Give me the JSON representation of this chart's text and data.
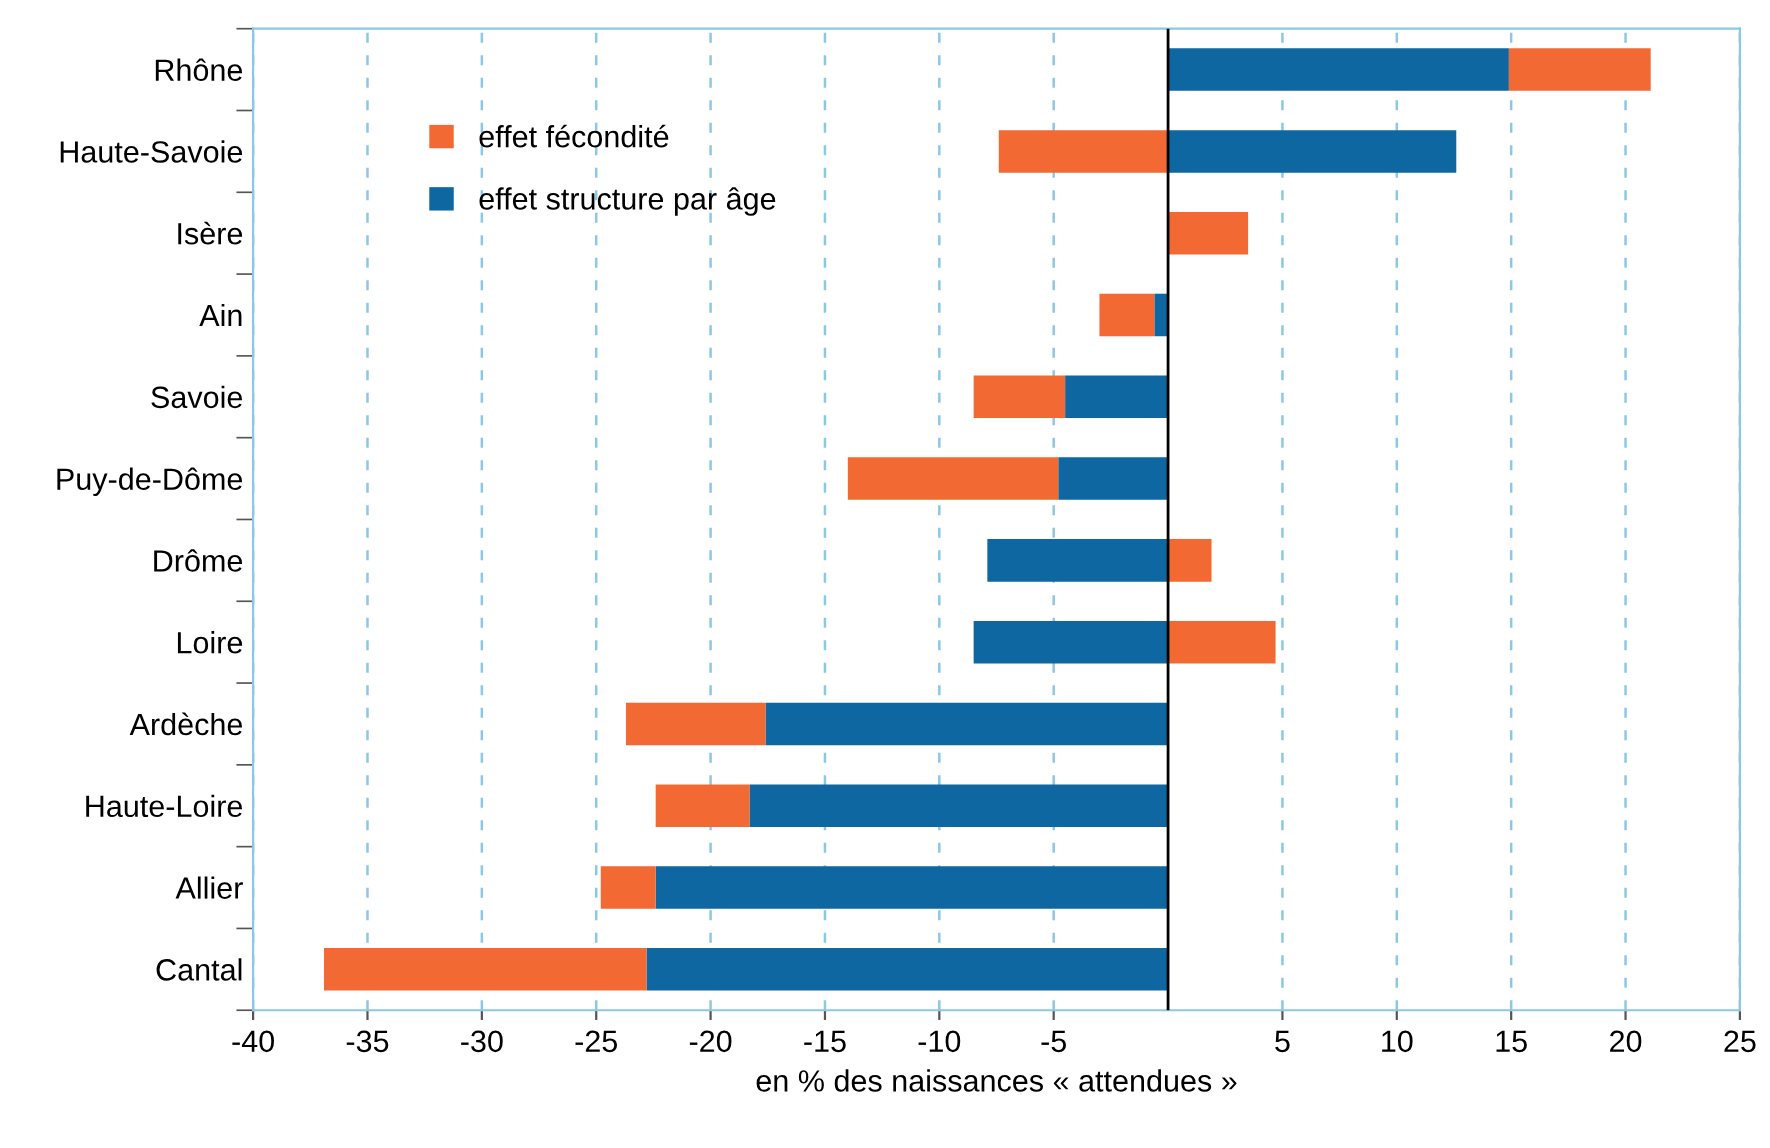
{
  "chart_data": {
    "type": "bar",
    "orientation": "horizontal",
    "stacked": true,
    "categories": [
      "Rhône",
      "Haute-Savoie",
      "Isère",
      "Ain",
      "Savoie",
      "Puy-de-Dôme",
      "Drôme",
      "Loire",
      "Ardèche",
      "Haute-Loire",
      "Allier",
      "Cantal"
    ],
    "series": [
      {
        "name": "effet structure par âge",
        "color": "#0e67a1",
        "values": [
          14.9,
          12.6,
          null,
          -0.6,
          -4.5,
          -4.8,
          -7.9,
          -8.5,
          -17.6,
          -18.3,
          -22.4,
          -22.8
        ]
      },
      {
        "name": "effet fécondité",
        "color": "#f26934",
        "values": [
          6.2,
          -7.4,
          3.5,
          -2.4,
          -4.0,
          -9.2,
          1.9,
          4.7,
          -6.1,
          -4.1,
          -2.4,
          -14.1
        ]
      }
    ],
    "xlim": [
      -40,
      25
    ],
    "xticks": [
      -40,
      -35,
      -30,
      -25,
      -20,
      -15,
      -10,
      -5,
      5,
      10,
      15,
      20,
      25
    ],
    "xlabel": "en % des naissances « attendues »",
    "ref_lines": [
      {
        "axis": "x",
        "value": 0,
        "color": "#000000"
      }
    ],
    "grid": "x",
    "legend": "top left"
  }
}
